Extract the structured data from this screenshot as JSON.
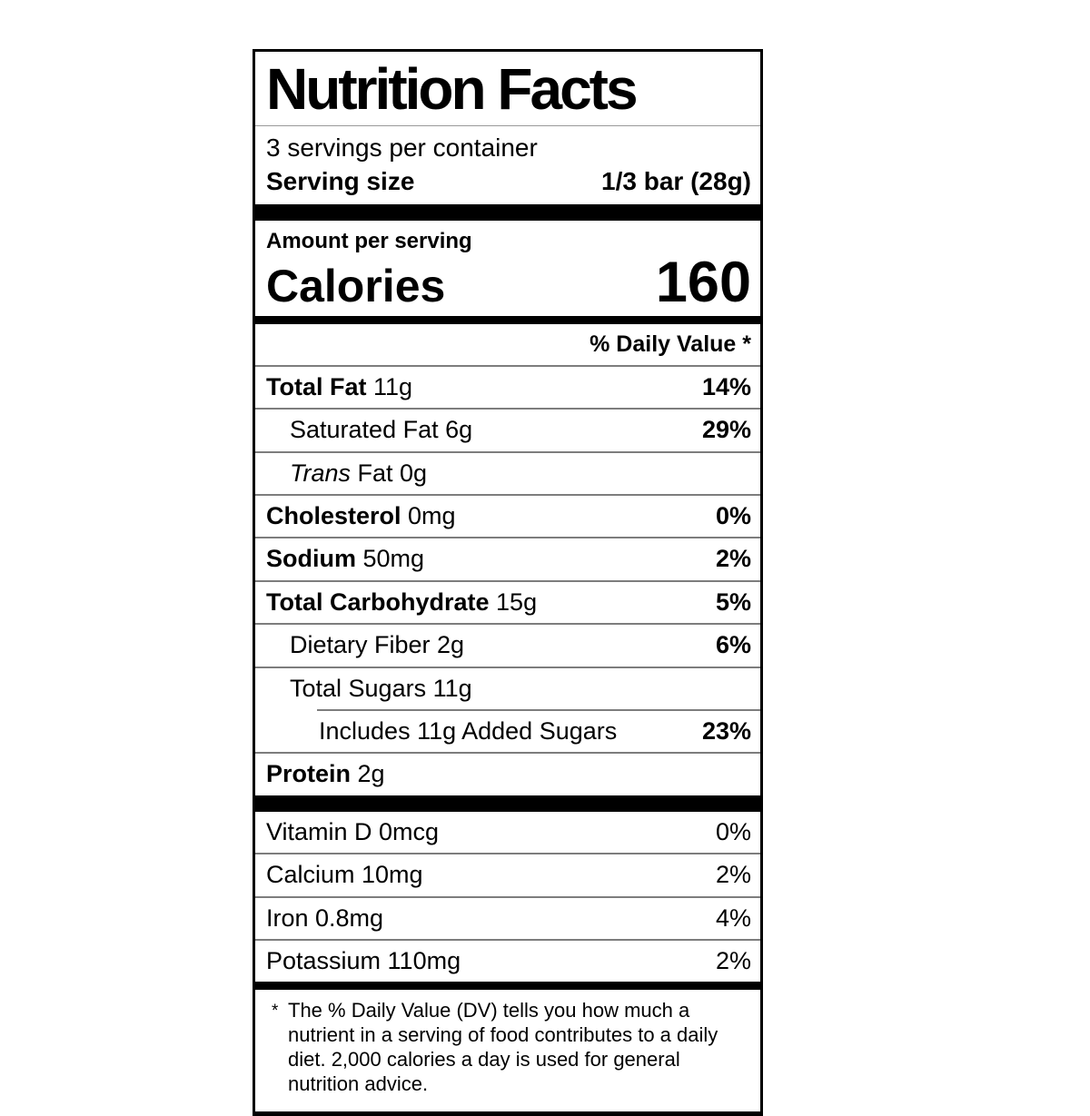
{
  "label": {
    "title": "Nutrition Facts",
    "servings_per_container": "3 servings per container",
    "serving_size": {
      "label": "Serving size",
      "value": "1/3 bar (28g)"
    },
    "amount_per_serving": "Amount per serving",
    "calories": {
      "label": "Calories",
      "value": "160"
    },
    "daily_value_header": "% Daily Value *",
    "nutrients": [
      {
        "bold": "Total Fat",
        "italic": "",
        "text": " 11g",
        "dv": "14%",
        "dv_bold": true,
        "indent": 0,
        "rule": "full"
      },
      {
        "bold": "",
        "italic": "",
        "text": "Saturated Fat 6g",
        "dv": "29%",
        "dv_bold": true,
        "indent": 1,
        "rule": "full"
      },
      {
        "bold": "",
        "italic": "Trans",
        "text": " Fat 0g",
        "dv": "",
        "dv_bold": false,
        "indent": 1,
        "rule": "full"
      },
      {
        "bold": "Cholesterol",
        "italic": "",
        "text": " 0mg",
        "dv": "0%",
        "dv_bold": true,
        "indent": 0,
        "rule": "full"
      },
      {
        "bold": "Sodium",
        "italic": "",
        "text": " 50mg",
        "dv": "2%",
        "dv_bold": true,
        "indent": 0,
        "rule": "full"
      },
      {
        "bold": "Total Carbohydrate",
        "italic": "",
        "text": " 15g",
        "dv": "5%",
        "dv_bold": true,
        "indent": 0,
        "rule": "full"
      },
      {
        "bold": "",
        "italic": "",
        "text": "Dietary Fiber 2g",
        "dv": "6%",
        "dv_bold": true,
        "indent": 1,
        "rule": "full"
      },
      {
        "bold": "",
        "italic": "",
        "text": "Total Sugars 11g",
        "dv": "",
        "dv_bold": false,
        "indent": 1,
        "rule": "full"
      },
      {
        "bold": "",
        "italic": "",
        "text": "Includes 11g Added Sugars",
        "dv": "23%",
        "dv_bold": true,
        "indent": 2,
        "rule": "partial"
      },
      {
        "bold": "Protein",
        "italic": "",
        "text": " 2g",
        "dv": "",
        "dv_bold": false,
        "indent": 0,
        "rule": "full"
      }
    ],
    "vitamins": [
      {
        "text": "Vitamin D 0mcg",
        "dv": "0%"
      },
      {
        "text": "Calcium 10mg",
        "dv": "2%"
      },
      {
        "text": "Iron 0.8mg",
        "dv": "4%"
      },
      {
        "text": "Potassium 110mg",
        "dv": "2%"
      }
    ],
    "footnote": {
      "marker": "*",
      "text": "The % Daily Value (DV) tells you how much a nutrient in a serving of food contributes to a daily diet. 2,000 calories a day is used for general nutrition advice."
    }
  },
  "colors": {
    "text": "#000000",
    "divider": "#7d7d7d",
    "bar": "#000000",
    "shadow": "#e2e2e2",
    "background": "#ffffff"
  }
}
